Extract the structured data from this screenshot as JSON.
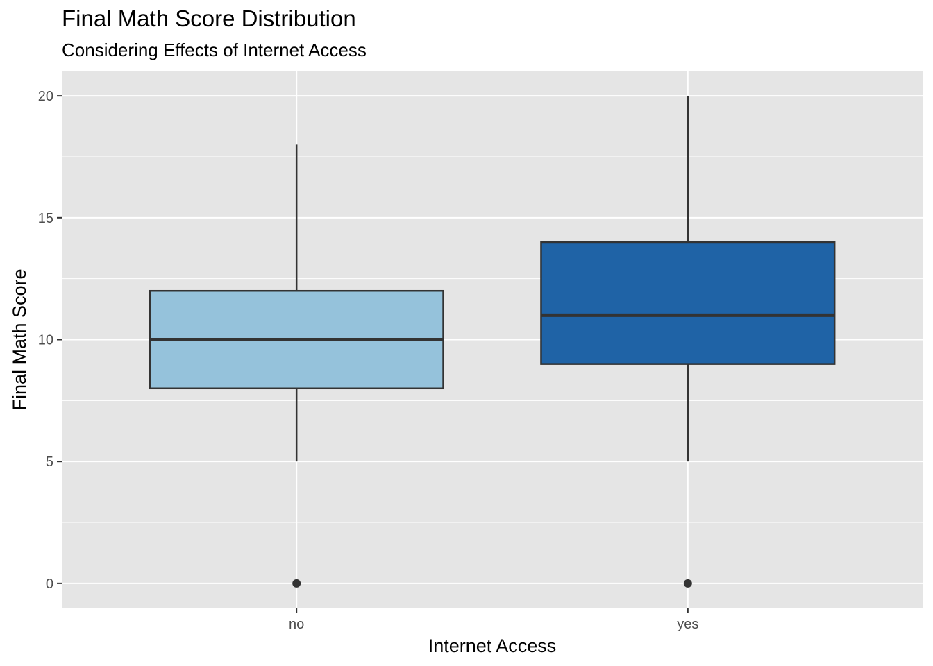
{
  "chart_data": {
    "type": "boxplot",
    "title": "Final Math Score Distribution",
    "subtitle": "Considering Effects of Internet Access",
    "xlabel": "Internet Access",
    "ylabel": "Final Math Score",
    "ylim": [
      -1,
      21
    ],
    "yticks": [
      0,
      5,
      10,
      15,
      20
    ],
    "grid": true,
    "legend": "none",
    "categories": [
      "no",
      "yes"
    ],
    "boxes": [
      {
        "category": "no",
        "whisker_low": 5,
        "q1": 8,
        "median": 10,
        "q3": 12,
        "whisker_high": 18,
        "outliers": [
          0
        ],
        "color": "#95C2DB"
      },
      {
        "category": "yes",
        "whisker_low": 5,
        "q1": 9,
        "median": 11,
        "q3": 14,
        "whisker_high": 20,
        "outliers": [
          0
        ],
        "color": "#1F63A6"
      }
    ],
    "colors": {
      "panel": "#E5E5E5",
      "grid": "#FFFFFF",
      "outline": "#333333"
    }
  }
}
